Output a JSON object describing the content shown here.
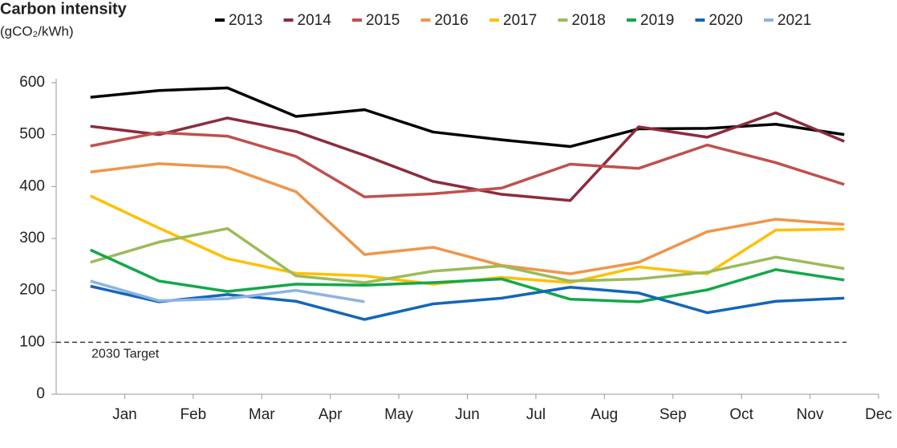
{
  "chart_data": {
    "type": "line",
    "title": "Carbon intensity",
    "subtitle": "(gCO₂/kWh)",
    "categories": [
      "Jan",
      "Feb",
      "Mar",
      "Apr",
      "May",
      "Jun",
      "Jul",
      "Aug",
      "Sep",
      "Oct",
      "Nov",
      "Dec"
    ],
    "series": [
      {
        "name": "2013",
        "color": "#000000",
        "values": [
          572,
          585,
          590,
          535,
          548,
          505,
          490,
          477,
          511,
          512,
          520,
          500
        ]
      },
      {
        "name": "2014",
        "color": "#8b2c3c",
        "values": [
          516,
          500,
          532,
          506,
          460,
          410,
          385,
          373,
          515,
          495,
          542,
          487
        ]
      },
      {
        "name": "2015",
        "color": "#c0504d",
        "values": [
          478,
          504,
          497,
          458,
          380,
          386,
          397,
          443,
          435,
          480,
          446,
          404
        ]
      },
      {
        "name": "2016",
        "color": "#f0954a",
        "values": [
          428,
          444,
          437,
          390,
          269,
          283,
          248,
          232,
          254,
          313,
          337,
          327
        ]
      },
      {
        "name": "2017",
        "color": "#ffc000",
        "values": [
          382,
          320,
          261,
          233,
          228,
          212,
          225,
          215,
          245,
          232,
          316,
          318
        ]
      },
      {
        "name": "2018",
        "color": "#9bbb59",
        "values": [
          254,
          293,
          319,
          228,
          215,
          237,
          247,
          218,
          222,
          235,
          264,
          242
        ]
      },
      {
        "name": "2019",
        "color": "#14a84a",
        "values": [
          278,
          218,
          198,
          212,
          210,
          215,
          222,
          183,
          178,
          201,
          240,
          220
        ]
      },
      {
        "name": "2020",
        "color": "#1466b8",
        "values": [
          208,
          178,
          192,
          179,
          144,
          174,
          185,
          206,
          195,
          157,
          179,
          185
        ]
      },
      {
        "name": "2021",
        "color": "#8db4e2",
        "values": [
          218,
          180,
          184,
          200,
          178,
          null,
          null,
          null,
          null,
          null,
          null,
          null
        ]
      }
    ],
    "ylim": [
      0,
      600
    ],
    "yticks": [
      0,
      100,
      200,
      300,
      400,
      500,
      600
    ],
    "target": {
      "value": 100,
      "label": "2030 Target"
    }
  }
}
